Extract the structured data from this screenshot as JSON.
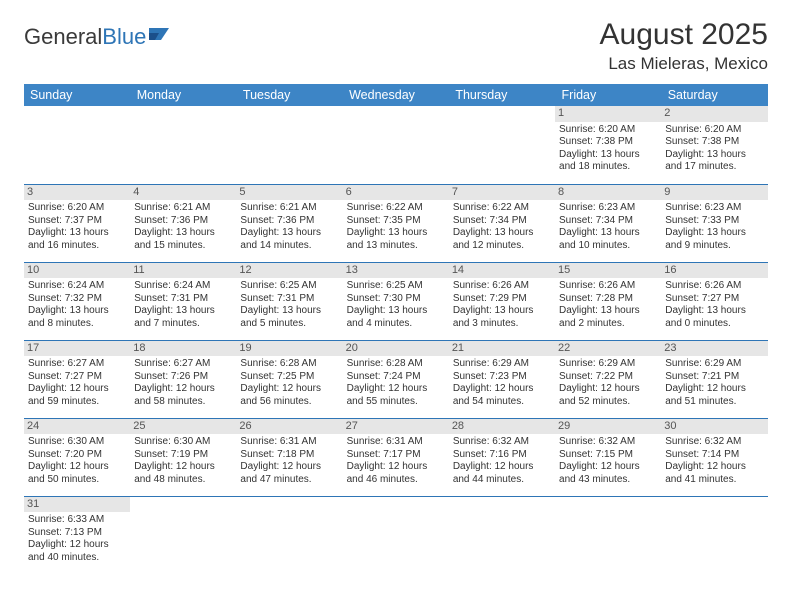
{
  "brand": {
    "part1": "General",
    "part2": "Blue"
  },
  "title": "August 2025",
  "location": "Las Mieleras, Mexico",
  "colors": {
    "header_bg": "#3d85c6",
    "header_text": "#ffffff",
    "row_divider": "#2e75b6",
    "daynum_bg": "#e6e6e6",
    "body_text": "#333333",
    "brand_blue": "#2e75b6"
  },
  "weekdays": [
    "Sunday",
    "Monday",
    "Tuesday",
    "Wednesday",
    "Thursday",
    "Friday",
    "Saturday"
  ],
  "cells": [
    {
      "day": "",
      "sunrise": "",
      "sunset": "",
      "dl1": "",
      "dl2": ""
    },
    {
      "day": "",
      "sunrise": "",
      "sunset": "",
      "dl1": "",
      "dl2": ""
    },
    {
      "day": "",
      "sunrise": "",
      "sunset": "",
      "dl1": "",
      "dl2": ""
    },
    {
      "day": "",
      "sunrise": "",
      "sunset": "",
      "dl1": "",
      "dl2": ""
    },
    {
      "day": "",
      "sunrise": "",
      "sunset": "",
      "dl1": "",
      "dl2": ""
    },
    {
      "day": "1",
      "sunrise": "Sunrise: 6:20 AM",
      "sunset": "Sunset: 7:38 PM",
      "dl1": "Daylight: 13 hours",
      "dl2": "and 18 minutes."
    },
    {
      "day": "2",
      "sunrise": "Sunrise: 6:20 AM",
      "sunset": "Sunset: 7:38 PM",
      "dl1": "Daylight: 13 hours",
      "dl2": "and 17 minutes."
    },
    {
      "day": "3",
      "sunrise": "Sunrise: 6:20 AM",
      "sunset": "Sunset: 7:37 PM",
      "dl1": "Daylight: 13 hours",
      "dl2": "and 16 minutes."
    },
    {
      "day": "4",
      "sunrise": "Sunrise: 6:21 AM",
      "sunset": "Sunset: 7:36 PM",
      "dl1": "Daylight: 13 hours",
      "dl2": "and 15 minutes."
    },
    {
      "day": "5",
      "sunrise": "Sunrise: 6:21 AM",
      "sunset": "Sunset: 7:36 PM",
      "dl1": "Daylight: 13 hours",
      "dl2": "and 14 minutes."
    },
    {
      "day": "6",
      "sunrise": "Sunrise: 6:22 AM",
      "sunset": "Sunset: 7:35 PM",
      "dl1": "Daylight: 13 hours",
      "dl2": "and 13 minutes."
    },
    {
      "day": "7",
      "sunrise": "Sunrise: 6:22 AM",
      "sunset": "Sunset: 7:34 PM",
      "dl1": "Daylight: 13 hours",
      "dl2": "and 12 minutes."
    },
    {
      "day": "8",
      "sunrise": "Sunrise: 6:23 AM",
      "sunset": "Sunset: 7:34 PM",
      "dl1": "Daylight: 13 hours",
      "dl2": "and 10 minutes."
    },
    {
      "day": "9",
      "sunrise": "Sunrise: 6:23 AM",
      "sunset": "Sunset: 7:33 PM",
      "dl1": "Daylight: 13 hours",
      "dl2": "and 9 minutes."
    },
    {
      "day": "10",
      "sunrise": "Sunrise: 6:24 AM",
      "sunset": "Sunset: 7:32 PM",
      "dl1": "Daylight: 13 hours",
      "dl2": "and 8 minutes."
    },
    {
      "day": "11",
      "sunrise": "Sunrise: 6:24 AM",
      "sunset": "Sunset: 7:31 PM",
      "dl1": "Daylight: 13 hours",
      "dl2": "and 7 minutes."
    },
    {
      "day": "12",
      "sunrise": "Sunrise: 6:25 AM",
      "sunset": "Sunset: 7:31 PM",
      "dl1": "Daylight: 13 hours",
      "dl2": "and 5 minutes."
    },
    {
      "day": "13",
      "sunrise": "Sunrise: 6:25 AM",
      "sunset": "Sunset: 7:30 PM",
      "dl1": "Daylight: 13 hours",
      "dl2": "and 4 minutes."
    },
    {
      "day": "14",
      "sunrise": "Sunrise: 6:26 AM",
      "sunset": "Sunset: 7:29 PM",
      "dl1": "Daylight: 13 hours",
      "dl2": "and 3 minutes."
    },
    {
      "day": "15",
      "sunrise": "Sunrise: 6:26 AM",
      "sunset": "Sunset: 7:28 PM",
      "dl1": "Daylight: 13 hours",
      "dl2": "and 2 minutes."
    },
    {
      "day": "16",
      "sunrise": "Sunrise: 6:26 AM",
      "sunset": "Sunset: 7:27 PM",
      "dl1": "Daylight: 13 hours",
      "dl2": "and 0 minutes."
    },
    {
      "day": "17",
      "sunrise": "Sunrise: 6:27 AM",
      "sunset": "Sunset: 7:27 PM",
      "dl1": "Daylight: 12 hours",
      "dl2": "and 59 minutes."
    },
    {
      "day": "18",
      "sunrise": "Sunrise: 6:27 AM",
      "sunset": "Sunset: 7:26 PM",
      "dl1": "Daylight: 12 hours",
      "dl2": "and 58 minutes."
    },
    {
      "day": "19",
      "sunrise": "Sunrise: 6:28 AM",
      "sunset": "Sunset: 7:25 PM",
      "dl1": "Daylight: 12 hours",
      "dl2": "and 56 minutes."
    },
    {
      "day": "20",
      "sunrise": "Sunrise: 6:28 AM",
      "sunset": "Sunset: 7:24 PM",
      "dl1": "Daylight: 12 hours",
      "dl2": "and 55 minutes."
    },
    {
      "day": "21",
      "sunrise": "Sunrise: 6:29 AM",
      "sunset": "Sunset: 7:23 PM",
      "dl1": "Daylight: 12 hours",
      "dl2": "and 54 minutes."
    },
    {
      "day": "22",
      "sunrise": "Sunrise: 6:29 AM",
      "sunset": "Sunset: 7:22 PM",
      "dl1": "Daylight: 12 hours",
      "dl2": "and 52 minutes."
    },
    {
      "day": "23",
      "sunrise": "Sunrise: 6:29 AM",
      "sunset": "Sunset: 7:21 PM",
      "dl1": "Daylight: 12 hours",
      "dl2": "and 51 minutes."
    },
    {
      "day": "24",
      "sunrise": "Sunrise: 6:30 AM",
      "sunset": "Sunset: 7:20 PM",
      "dl1": "Daylight: 12 hours",
      "dl2": "and 50 minutes."
    },
    {
      "day": "25",
      "sunrise": "Sunrise: 6:30 AM",
      "sunset": "Sunset: 7:19 PM",
      "dl1": "Daylight: 12 hours",
      "dl2": "and 48 minutes."
    },
    {
      "day": "26",
      "sunrise": "Sunrise: 6:31 AM",
      "sunset": "Sunset: 7:18 PM",
      "dl1": "Daylight: 12 hours",
      "dl2": "and 47 minutes."
    },
    {
      "day": "27",
      "sunrise": "Sunrise: 6:31 AM",
      "sunset": "Sunset: 7:17 PM",
      "dl1": "Daylight: 12 hours",
      "dl2": "and 46 minutes."
    },
    {
      "day": "28",
      "sunrise": "Sunrise: 6:32 AM",
      "sunset": "Sunset: 7:16 PM",
      "dl1": "Daylight: 12 hours",
      "dl2": "and 44 minutes."
    },
    {
      "day": "29",
      "sunrise": "Sunrise: 6:32 AM",
      "sunset": "Sunset: 7:15 PM",
      "dl1": "Daylight: 12 hours",
      "dl2": "and 43 minutes."
    },
    {
      "day": "30",
      "sunrise": "Sunrise: 6:32 AM",
      "sunset": "Sunset: 7:14 PM",
      "dl1": "Daylight: 12 hours",
      "dl2": "and 41 minutes."
    },
    {
      "day": "31",
      "sunrise": "Sunrise: 6:33 AM",
      "sunset": "Sunset: 7:13 PM",
      "dl1": "Daylight: 12 hours",
      "dl2": "and 40 minutes."
    },
    {
      "day": "",
      "sunrise": "",
      "sunset": "",
      "dl1": "",
      "dl2": ""
    },
    {
      "day": "",
      "sunrise": "",
      "sunset": "",
      "dl1": "",
      "dl2": ""
    },
    {
      "day": "",
      "sunrise": "",
      "sunset": "",
      "dl1": "",
      "dl2": ""
    },
    {
      "day": "",
      "sunrise": "",
      "sunset": "",
      "dl1": "",
      "dl2": ""
    },
    {
      "day": "",
      "sunrise": "",
      "sunset": "",
      "dl1": "",
      "dl2": ""
    },
    {
      "day": "",
      "sunrise": "",
      "sunset": "",
      "dl1": "",
      "dl2": ""
    }
  ]
}
